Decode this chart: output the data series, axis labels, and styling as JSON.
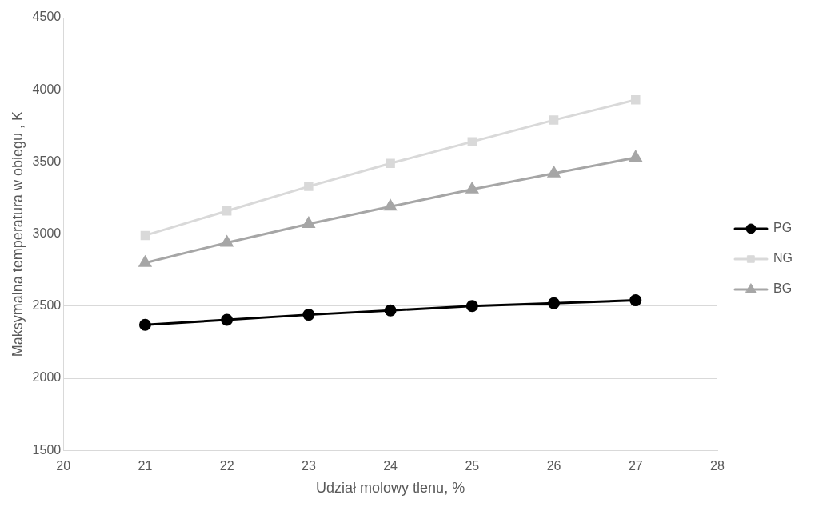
{
  "chart_data": {
    "type": "line",
    "xlabel": "Udział molowy tlenu, %",
    "ylabel": "Maksymalna temperatura w obiegu , K",
    "x": [
      21,
      22,
      23,
      24,
      25,
      26,
      27
    ],
    "series": [
      {
        "name": "PG",
        "color": "#000000",
        "marker": "circle",
        "values": [
          2370,
          2405,
          2440,
          2470,
          2500,
          2520,
          2540
        ]
      },
      {
        "name": "NG",
        "color": "#d9d9d9",
        "marker": "square",
        "values": [
          2990,
          3160,
          3330,
          3490,
          3640,
          3790,
          3930
        ]
      },
      {
        "name": "BG",
        "color": "#a6a6a6",
        "marker": "triangle",
        "values": [
          2800,
          2940,
          3070,
          3190,
          3310,
          3420,
          3530
        ]
      }
    ],
    "xlim": [
      20,
      28
    ],
    "xticks": [
      20,
      21,
      22,
      23,
      24,
      25,
      26,
      27,
      28
    ],
    "ylim": [
      1500,
      4500
    ],
    "yticks": [
      1500,
      2000,
      2500,
      3000,
      3500,
      4000,
      4500
    ],
    "grid": "y",
    "legend": "right",
    "line_style": "solid"
  }
}
